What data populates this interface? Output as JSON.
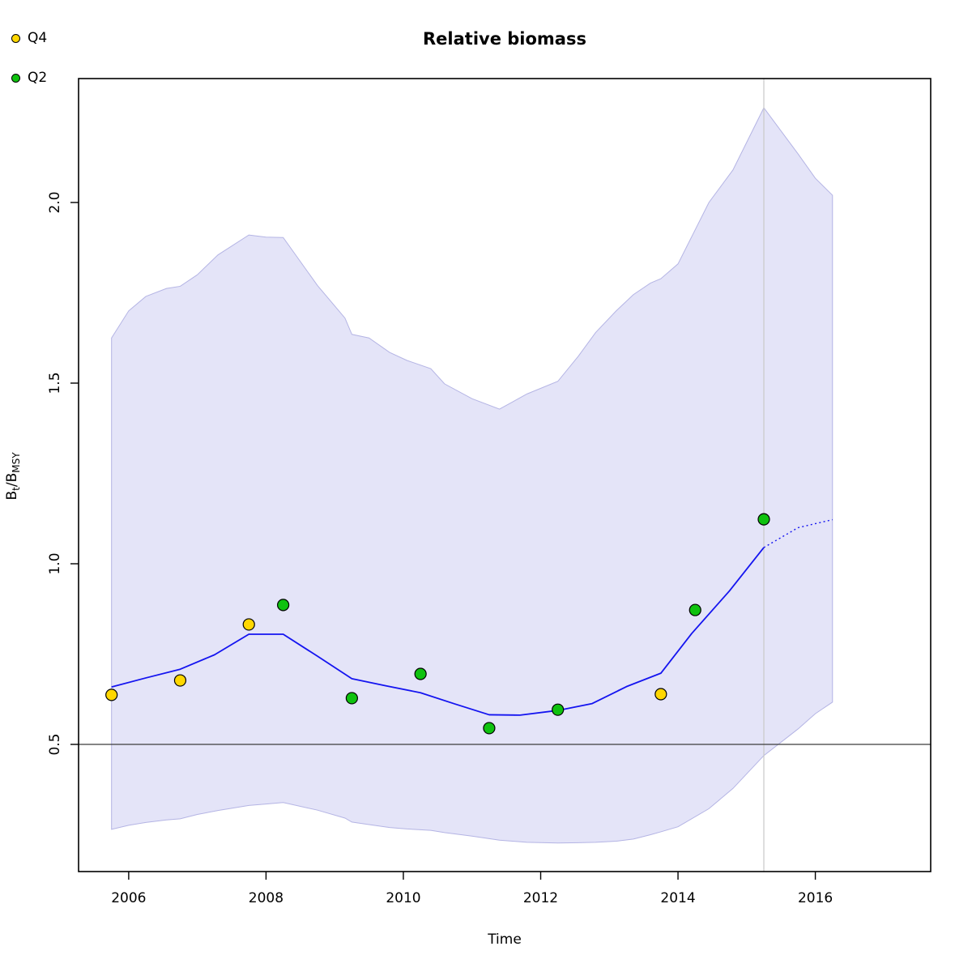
{
  "title": "Relative biomass",
  "legend": {
    "items": [
      {
        "label": "Q4",
        "color": "#ffd700"
      },
      {
        "label": "Q2",
        "color": "#0fc20f"
      }
    ]
  },
  "axes": {
    "xlabel": "Time",
    "ylabel_parts": {
      "b1": "B",
      "s1": "t",
      "slash": "/",
      "b2": "B",
      "s2": "MSY"
    }
  },
  "chart_data": {
    "type": "line",
    "title": "Relative biomass",
    "xlabel": "Time",
    "ylabel": "Bt/BMSY",
    "xlim": [
      2005.27,
      2017.68
    ],
    "ylim": [
      0.148,
      2.343
    ],
    "x_ticks": [
      2006,
      2008,
      2010,
      2012,
      2014,
      2016
    ],
    "x_tick_labels": [
      "2006",
      "2008",
      "2010",
      "2012",
      "2014",
      "2016"
    ],
    "y_ticks": [
      0.5,
      1.0,
      1.5,
      2.0
    ],
    "y_tick_labels": [
      "0.5",
      "1.0",
      "1.5",
      "2.0"
    ],
    "grid": false,
    "legend_position": "top-left-outside",
    "reference_lines": {
      "horizontal_y": 0.5,
      "vertical_x": 2015.25
    },
    "colors": {
      "band_fill": "#e4e4f8",
      "band_edge": "#b4b4e4",
      "median_line": "#1414f0",
      "h_ref_line": "#3c3c3c",
      "v_ref_line": "#c8c8c8",
      "frame": "#000000",
      "q4_point": "#ffd700",
      "q2_point": "#0fc20f",
      "point_stroke": "#000000"
    },
    "band": {
      "x": [
        2005.75,
        2006.0,
        2006.25,
        2006.55,
        2006.75,
        2007.0,
        2007.3,
        2007.75,
        2008.0,
        2008.25,
        2008.75,
        2009.15,
        2009.25,
        2009.5,
        2009.8,
        2010.05,
        2010.4,
        2010.6,
        2011.0,
        2011.4,
        2011.8,
        2012.25,
        2012.55,
        2012.8,
        2013.1,
        2013.35,
        2013.6,
        2013.75,
        2014.0,
        2014.45,
        2014.8,
        2015.25,
        2015.75,
        2016.0,
        2016.25
      ],
      "upper": [
        1.625,
        1.7,
        1.74,
        1.762,
        1.768,
        1.8,
        1.855,
        1.91,
        1.904,
        1.903,
        1.77,
        1.68,
        1.635,
        1.625,
        1.585,
        1.563,
        1.54,
        1.498,
        1.457,
        1.428,
        1.47,
        1.505,
        1.575,
        1.64,
        1.7,
        1.745,
        1.777,
        1.789,
        1.83,
        2.0,
        2.09,
        2.262,
        2.134,
        2.067,
        2.02
      ],
      "lower": [
        0.265,
        0.276,
        0.284,
        0.291,
        0.294,
        0.306,
        0.317,
        0.331,
        0.335,
        0.339,
        0.318,
        0.296,
        0.285,
        0.278,
        0.27,
        0.266,
        0.262,
        0.256,
        0.246,
        0.235,
        0.229,
        0.227,
        0.228,
        0.229,
        0.232,
        0.238,
        0.25,
        0.258,
        0.272,
        0.322,
        0.378,
        0.469,
        0.543,
        0.585,
        0.617
      ]
    },
    "series": [
      {
        "name": "median",
        "type": "line",
        "style": "solid",
        "x": [
          2005.75,
          2006.25,
          2006.75,
          2007.25,
          2007.75,
          2008.25,
          2008.75,
          2009.25,
          2009.75,
          2010.25,
          2010.75,
          2011.25,
          2011.7,
          2012.25,
          2012.75,
          2013.25,
          2013.75,
          2014.2,
          2014.75,
          2015.25
        ],
        "y": [
          0.659,
          0.684,
          0.708,
          0.748,
          0.805,
          0.805,
          0.744,
          0.682,
          0.662,
          0.643,
          0.612,
          0.582,
          0.581,
          0.594,
          0.613,
          0.66,
          0.697,
          0.807,
          0.925,
          1.045
        ]
      },
      {
        "name": "median-forecast",
        "type": "line",
        "style": "dotted",
        "x": [
          2015.25,
          2015.75,
          2016.25
        ],
        "y": [
          1.045,
          1.1,
          1.122
        ]
      },
      {
        "name": "Q4",
        "type": "scatter",
        "x": [
          2005.75,
          2006.75,
          2007.75,
          2013.75
        ],
        "y": [
          0.637,
          0.677,
          0.832,
          0.639
        ]
      },
      {
        "name": "Q2",
        "type": "scatter",
        "x": [
          2008.25,
          2009.25,
          2010.25,
          2011.25,
          2012.25,
          2014.25,
          2015.25
        ],
        "y": [
          0.886,
          0.628,
          0.695,
          0.545,
          0.596,
          0.872,
          1.123
        ]
      }
    ]
  }
}
